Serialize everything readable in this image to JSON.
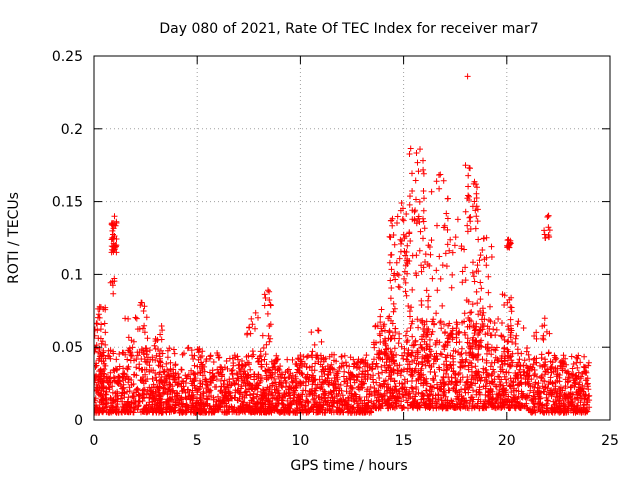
{
  "chart_data": {
    "type": "scatter",
    "title": "Day 080 of 2021, Rate Of TEC Index for receiver mar7",
    "xlabel": "GPS time / hours",
    "ylabel": "ROTI / TECUs",
    "xlim": [
      0,
      25
    ],
    "ylim": [
      0,
      0.25
    ],
    "x_ticks": [
      0,
      5,
      10,
      15,
      20,
      25
    ],
    "x_tick_labels": [
      "0",
      "5",
      "10",
      "15",
      "20",
      "25"
    ],
    "y_ticks": [
      0,
      0.05,
      0.1,
      0.15,
      0.2,
      0.25
    ],
    "y_tick_labels": [
      "0",
      "0.05",
      "0.1",
      "0.15",
      "0.2",
      "0.25"
    ],
    "grid": true,
    "marker": "+",
    "color": "#ff0000",
    "baseline_band": {
      "description": "dense band of ROTI values through the whole day",
      "segments": [
        {
          "x": [
            0,
            6
          ],
          "y_typical": [
            0.005,
            0.035
          ],
          "y_high": 0.05
        },
        {
          "x": [
            6,
            13.5
          ],
          "y_typical": [
            0.005,
            0.035
          ],
          "y_high": 0.045
        },
        {
          "x": [
            13.5,
            21
          ],
          "y_typical": [
            0.008,
            0.05
          ],
          "y_high": 0.07
        },
        {
          "x": [
            21,
            24
          ],
          "y_typical": [
            0.005,
            0.035
          ],
          "y_high": 0.045
        }
      ]
    },
    "clusters": [
      {
        "x": [
          0.0,
          0.6
        ],
        "y": [
          0.02,
          0.078
        ],
        "n": 60
      },
      {
        "x": [
          0.85,
          1.1
        ],
        "y": [
          0.115,
          0.14
        ],
        "n": 35
      },
      {
        "x": [
          0.8,
          1.0
        ],
        "y": [
          0.085,
          0.098
        ],
        "n": 6
      },
      {
        "x": [
          1.5,
          2.6
        ],
        "y": [
          0.04,
          0.075
        ],
        "n": 25
      },
      {
        "x": [
          2.2,
          2.5
        ],
        "y": [
          0.078,
          0.081
        ],
        "n": 4
      },
      {
        "x": [
          2.9,
          3.3
        ],
        "y": [
          0.04,
          0.065
        ],
        "n": 12
      },
      {
        "x": [
          4.8,
          5.3
        ],
        "y": [
          0.035,
          0.05
        ],
        "n": 8
      },
      {
        "x": [
          7.3,
          8.6
        ],
        "y": [
          0.04,
          0.075
        ],
        "n": 25
      },
      {
        "x": [
          8.2,
          8.6
        ],
        "y": [
          0.078,
          0.092
        ],
        "n": 8
      },
      {
        "x": [
          10.3,
          11.3
        ],
        "y": [
          0.035,
          0.065
        ],
        "n": 15
      },
      {
        "x": [
          13.8,
          14.6
        ],
        "y": [
          0.04,
          0.085
        ],
        "n": 30
      },
      {
        "x": [
          14.3,
          15.3
        ],
        "y": [
          0.09,
          0.15
        ],
        "n": 45
      },
      {
        "x": [
          15.0,
          16.2
        ],
        "y": [
          0.04,
          0.13
        ],
        "n": 60
      },
      {
        "x": [
          15.2,
          16.1
        ],
        "y": [
          0.135,
          0.187
        ],
        "n": 30
      },
      {
        "x": [
          16.0,
          17.2
        ],
        "y": [
          0.04,
          0.17
        ],
        "n": 50
      },
      {
        "x": [
          17.0,
          18.6
        ],
        "y": [
          0.05,
          0.14
        ],
        "n": 60
      },
      {
        "x": [
          18.0,
          18.6
        ],
        "y": [
          0.13,
          0.175
        ],
        "n": 25
      },
      {
        "x": [
          18.5,
          19.3
        ],
        "y": [
          0.05,
          0.13
        ],
        "n": 40
      },
      {
        "x": [
          19.7,
          20.3
        ],
        "y": [
          0.04,
          0.095
        ],
        "n": 20
      },
      {
        "x": [
          20.0,
          20.2
        ],
        "y": [
          0.118,
          0.124
        ],
        "n": 12
      },
      {
        "x": [
          21.3,
          22.2
        ],
        "y": [
          0.035,
          0.07
        ],
        "n": 20
      },
      {
        "x": [
          21.8,
          22.1
        ],
        "y": [
          0.125,
          0.142
        ],
        "n": 12
      }
    ],
    "outliers": [
      {
        "x": 18.1,
        "y": 0.236
      },
      {
        "x": 18.0,
        "y": 0.175
      },
      {
        "x": 16.6,
        "y": 0.164
      }
    ]
  }
}
